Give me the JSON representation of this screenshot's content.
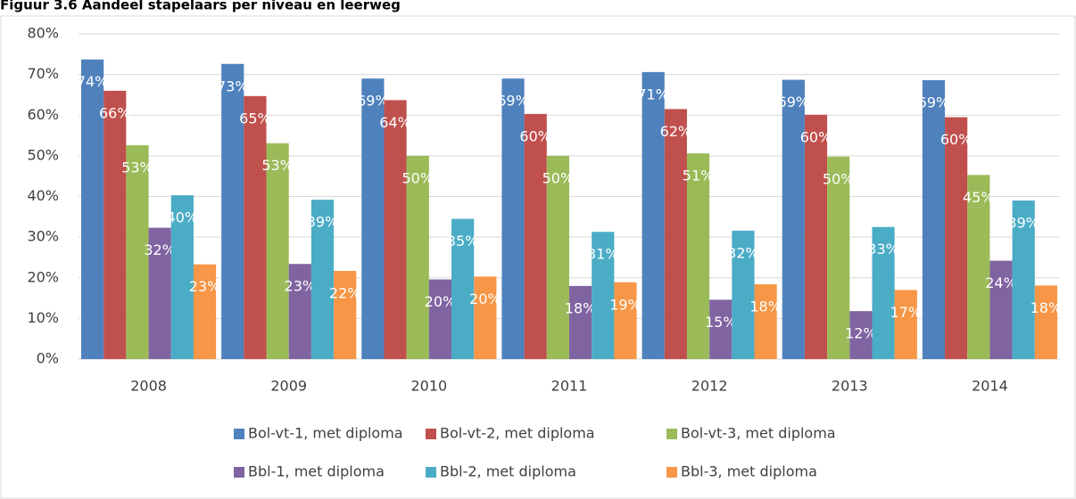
{
  "chart_data": {
    "type": "bar",
    "title": "Figuur 3.6 Aandeel stapelaars per niveau en leerweg",
    "categories": [
      "2008",
      "2009",
      "2010",
      "2011",
      "2012",
      "2013",
      "2014"
    ],
    "series": [
      {
        "name": "Bol-vt-1, met diploma",
        "color": "#4f81bd",
        "values": [
          73.7,
          72.6,
          69.0,
          69.0,
          70.6,
          68.7,
          68.6
        ],
        "value_labels": [
          "74%",
          "73%",
          "69%",
          "69%",
          "71%",
          "69%",
          "69%"
        ]
      },
      {
        "name": "Bol-vt-2, met diploma",
        "color": "#c0504d",
        "values": [
          66.0,
          64.7,
          63.7,
          60.3,
          61.5,
          60.1,
          59.5
        ],
        "value_labels": [
          "66%",
          "65%",
          "64%",
          "60%",
          "62%",
          "60%",
          "60%"
        ]
      },
      {
        "name": "Bol-vt-3, met diploma",
        "color": "#9bbb59",
        "values": [
          52.6,
          53.1,
          50.0,
          50.0,
          50.6,
          49.8,
          45.3
        ],
        "value_labels": [
          "53%",
          "53%",
          "50%",
          "50%",
          "51%",
          "50%",
          "45%"
        ]
      },
      {
        "name": "Bbl-1, met diploma",
        "color": "#8064a2",
        "values": [
          32.3,
          23.4,
          19.6,
          18.0,
          14.6,
          11.8,
          24.2
        ],
        "value_labels": [
          "32%",
          "23%",
          "20%",
          "18%",
          "15%",
          "12%",
          "24%"
        ]
      },
      {
        "name": "Bbl-2, met diploma",
        "color": "#4bacc6",
        "values": [
          40.3,
          39.2,
          34.5,
          31.3,
          31.6,
          32.5,
          39.0
        ],
        "value_labels": [
          "40%",
          "39%",
          "35%",
          "31%",
          "32%",
          "33%",
          "39%"
        ]
      },
      {
        "name": "Bbl-3, met diploma",
        "color": "#f79646",
        "values": [
          23.3,
          21.7,
          20.3,
          18.9,
          18.4,
          17.0,
          18.1
        ],
        "value_labels": [
          "23%",
          "22%",
          "20%",
          "19%",
          "18%",
          "17%",
          "18%"
        ]
      }
    ],
    "ylim": [
      0,
      80
    ],
    "yticks": [
      {
        "value": 0,
        "label": "0%"
      },
      {
        "value": 10,
        "label": "10%"
      },
      {
        "value": 20,
        "label": "20%"
      },
      {
        "value": 30,
        "label": "30%"
      },
      {
        "value": 40,
        "label": "40%"
      },
      {
        "value": 50,
        "label": "50%"
      },
      {
        "value": 60,
        "label": "60%"
      },
      {
        "value": 70,
        "label": "70%"
      },
      {
        "value": 80,
        "label": "80%"
      }
    ],
    "grid": true,
    "legend": "bottom"
  }
}
